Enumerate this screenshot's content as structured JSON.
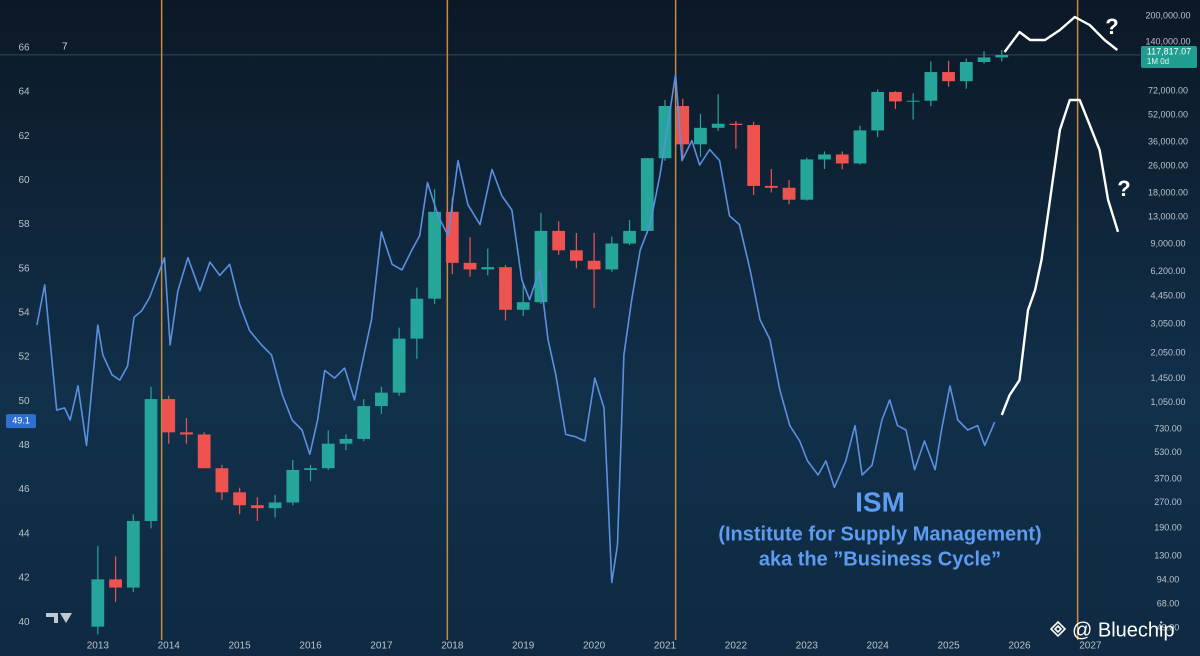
{
  "chart_data": {
    "type": "candlestick",
    "xlim": [
      2011.62,
      2027.7
    ],
    "ylim": [
      39.19,
      68.17
    ],
    "y2lim": [
      41.7,
      248600
    ],
    "y2log": true,
    "grid": false,
    "xticks": [
      2013,
      2014,
      2015,
      2016,
      2017,
      2018,
      2019,
      2020,
      2021,
      2022,
      2023,
      2024,
      2025,
      2026,
      2027
    ],
    "yticks": [
      40,
      42,
      44,
      46,
      48,
      50,
      52,
      54,
      56,
      58,
      60,
      62,
      64,
      66
    ],
    "y2ticks": [
      {
        "value": 200000,
        "label": "200,000.00"
      },
      {
        "value": 140000,
        "label": "140,000.00"
      },
      {
        "value": 72000,
        "label": "72,000.00"
      },
      {
        "value": 52000,
        "label": "52,000.00"
      },
      {
        "value": 36000,
        "label": "36,000.00"
      },
      {
        "value": 26000,
        "label": "26,000.00"
      },
      {
        "value": 18000,
        "label": "18,000.00"
      },
      {
        "value": 13000,
        "label": "13,000.00"
      },
      {
        "value": 9000,
        "label": "9,000.00"
      },
      {
        "value": 6200,
        "label": "6,200.00"
      },
      {
        "value": 4450,
        "label": "4,450.00"
      },
      {
        "value": 3050,
        "label": "3,050.00"
      },
      {
        "value": 2050,
        "label": "2,050.00"
      },
      {
        "value": 1450,
        "label": "1,450.00"
      },
      {
        "value": 1050,
        "label": "1,050.00"
      },
      {
        "value": 730,
        "label": "730.00"
      },
      {
        "value": 530,
        "label": "530.00"
      },
      {
        "value": 370,
        "label": "370.00"
      },
      {
        "value": 270,
        "label": "270.00"
      },
      {
        "value": 190,
        "label": "190.00"
      },
      {
        "value": 130,
        "label": "130.00"
      },
      {
        "value": 94,
        "label": "94.00"
      },
      {
        "value": 68,
        "label": "68.00"
      },
      {
        "value": 49,
        "label": "49.00"
      }
    ],
    "up_color": "#26a69a",
    "down_color": "#ef5350",
    "candles": {
      "axis": "y2",
      "x": [
        2013.0,
        2013.25,
        2013.5,
        2013.75,
        2014.0,
        2014.25,
        2014.5,
        2014.75,
        2015.0,
        2015.25,
        2015.5,
        2015.75,
        2016.0,
        2016.25,
        2016.5,
        2016.75,
        2017.0,
        2017.25,
        2017.5,
        2017.75,
        2018.0,
        2018.25,
        2018.5,
        2018.75,
        2019.0,
        2019.25,
        2019.5,
        2019.75,
        2020.0,
        2020.25,
        2020.5,
        2020.75,
        2021.0,
        2021.25,
        2021.5,
        2021.75,
        2022.0,
        2022.25,
        2022.5,
        2022.75,
        2023.0,
        2023.25,
        2023.5,
        2023.75,
        2024.0,
        2024.25,
        2024.5,
        2024.75,
        2025.0,
        2025.25,
        2025.5,
        2025.75
      ],
      "open": [
        50,
        95,
        85,
        210,
        1100,
        700,
        680,
        430,
        310,
        260,
        250,
        270,
        420,
        430,
        600,
        640,
        1000,
        1200,
        2500,
        4300,
        14000,
        7000,
        6400,
        6600,
        3700,
        4100,
        10800,
        8300,
        7200,
        6400,
        9100,
        10800,
        29000,
        58900,
        35000,
        43800,
        46300,
        45500,
        19900,
        19400,
        16500,
        28500,
        30500,
        27000,
        42300,
        71300,
        62700,
        63300,
        93400,
        82500,
        107100,
        114000
      ],
      "high": [
        150,
        130,
        230,
        1300,
        1150,
        850,
        700,
        450,
        330,
        290,
        300,
        480,
        450,
        720,
        680,
        1100,
        1300,
        2900,
        5000,
        19000,
        17000,
        9900,
        8500,
        6800,
        5300,
        13800,
        12300,
        10500,
        10500,
        10000,
        12500,
        29000,
        64000,
        65000,
        53000,
        69000,
        48000,
        47500,
        25000,
        21500,
        29200,
        31800,
        31800,
        45000,
        73800,
        72000,
        70000,
        108000,
        109000,
        112000,
        124000,
        126000
      ],
      "low": [
        45,
        70,
        80,
        190,
        600,
        600,
        450,
        280,
        230,
        210,
        220,
        260,
        360,
        420,
        550,
        620,
        900,
        1150,
        1900,
        4000,
        6000,
        5800,
        5900,
        3200,
        3400,
        4000,
        7800,
        6500,
        3800,
        6200,
        8900,
        10400,
        28000,
        29000,
        29500,
        42000,
        33000,
        17600,
        18200,
        15500,
        16300,
        25000,
        24900,
        26500,
        38500,
        56500,
        49000,
        58800,
        76500,
        74500,
        105000,
        108000
      ],
      "close": [
        95,
        85,
        210,
        1100,
        700,
        680,
        430,
        310,
        260,
        250,
        270,
        420,
        430,
        600,
        640,
        1000,
        1200,
        2500,
        4300,
        14000,
        7000,
        6400,
        6600,
        3700,
        4100,
        10800,
        8300,
        7200,
        6400,
        9100,
        10800,
        29000,
        58900,
        35000,
        43800,
        46300,
        45500,
        19900,
        19400,
        16500,
        28500,
        30500,
        27000,
        42300,
        71300,
        62700,
        63300,
        93400,
        82500,
        107100,
        114000,
        117817.07
      ]
    },
    "series": [
      {
        "type": "line",
        "color": "#5b8fe0",
        "x": [
          2012.14,
          2012.25,
          2012.42,
          2012.53,
          2012.61,
          2012.72,
          2012.84,
          2013.0,
          2013.07,
          2013.2,
          2013.31,
          2013.42,
          2013.51,
          2013.62,
          2013.73,
          2013.87,
          2013.94,
          2014.02,
          2014.13,
          2014.27,
          2014.44,
          2014.58,
          2014.72,
          2014.86,
          2015.0,
          2015.14,
          2015.31,
          2015.45,
          2015.6,
          2015.74,
          2015.88,
          2015.99,
          2016.1,
          2016.2,
          2016.34,
          2016.48,
          2016.62,
          2016.72,
          2016.86,
          2017.0,
          2017.15,
          2017.29,
          2017.43,
          2017.54,
          2017.65,
          2017.8,
          2017.94,
          2018.08,
          2018.22,
          2018.39,
          2018.56,
          2018.7,
          2018.84,
          2018.98,
          2019.09,
          2019.23,
          2019.35,
          2019.46,
          2019.6,
          2019.73,
          2019.87,
          2020.01,
          2020.14,
          2020.25,
          2020.33,
          2020.42,
          2020.53,
          2020.65,
          2020.79,
          2020.93,
          2021.04,
          2021.15,
          2021.24,
          2021.38,
          2021.49,
          2021.63,
          2021.77,
          2021.91,
          2022.05,
          2022.2,
          2022.34,
          2022.48,
          2022.62,
          2022.76,
          2022.9,
          2023.01,
          2023.16,
          2023.27,
          2023.39,
          2023.55,
          2023.68,
          2023.78,
          2023.92,
          2024.06,
          2024.17,
          2024.28,
          2024.4,
          2024.52,
          2024.66,
          2024.81,
          2024.9,
          2025.02,
          2025.13,
          2025.27,
          2025.41,
          2025.51,
          2025.65
        ],
        "values": [
          53.45,
          55.27,
          49.6,
          49.7,
          49.15,
          50.7,
          48.0,
          53.45,
          52.1,
          51.2,
          50.96,
          51.6,
          53.8,
          54.1,
          54.7,
          55.9,
          56.5,
          52.55,
          55.0,
          56.5,
          55.0,
          56.3,
          55.7,
          56.2,
          54.4,
          53.2,
          52.55,
          52.1,
          50.3,
          49.15,
          48.7,
          47.6,
          49.15,
          51.4,
          51.05,
          51.5,
          50.06,
          51.6,
          53.7,
          57.67,
          56.2,
          55.95,
          56.85,
          57.5,
          59.9,
          58.4,
          57.5,
          60.9,
          58.9,
          58.0,
          60.5,
          59.3,
          58.66,
          55.5,
          54.6,
          55.95,
          52.8,
          51.2,
          48.5,
          48.4,
          48.2,
          51.05,
          49.7,
          41.8,
          43.5,
          52.1,
          54.6,
          56.85,
          58.0,
          60.25,
          62.5,
          64.8,
          60.9,
          61.8,
          60.7,
          61.4,
          60.9,
          58.4,
          58.0,
          55.95,
          53.7,
          52.8,
          50.5,
          48.9,
          48.2,
          47.3,
          46.66,
          47.3,
          46.1,
          47.3,
          48.9,
          46.66,
          47.1,
          49.15,
          50.06,
          48.9,
          48.7,
          46.9,
          48.2,
          46.9,
          48.7,
          50.7,
          49.15,
          48.7,
          48.9,
          48.0,
          49.06
        ]
      },
      {
        "type": "line",
        "color": "#ffffff",
        "x": [
          2025.75,
          2025.86,
          2026.0,
          2026.12,
          2026.22,
          2026.31,
          2026.43,
          2026.57,
          2026.71,
          2026.85,
          2026.99,
          2027.13,
          2027.25,
          2027.39
        ],
        "values": [
          49.38,
          50.28,
          50.96,
          54.13,
          55.04,
          56.4,
          59.12,
          62.29,
          63.64,
          63.64,
          62.51,
          61.38,
          59.12,
          57.67
        ]
      },
      {
        "type": "line",
        "color": "#ffffff",
        "axis": "y2",
        "x": [
          2025.79,
          2026.0,
          2026.15,
          2026.36,
          2026.57,
          2026.78,
          2026.99,
          2027.2,
          2027.38
        ],
        "values": [
          122600,
          160900,
          144300,
          144300,
          165400,
          197300,
          177000,
          144300,
          126000
        ]
      }
    ],
    "cycle_lines": {
      "color": "#c98a3c",
      "x": [
        2013.9,
        2017.93,
        2021.15,
        2026.82
      ]
    },
    "last_price": {
      "value": 117817.07,
      "label": "117,817.07",
      "period": "1M 0d",
      "color": "#1f9e8f"
    },
    "last_ism": {
      "value": 49.1,
      "color": "#2f6fd0"
    },
    "symbol_label": "7",
    "annotations": [
      "ISM",
      "(Institute for Supply Management)",
      "aka the ”Business Cycle”",
      "?",
      "?"
    ],
    "watermark": "@ Bluechip"
  }
}
